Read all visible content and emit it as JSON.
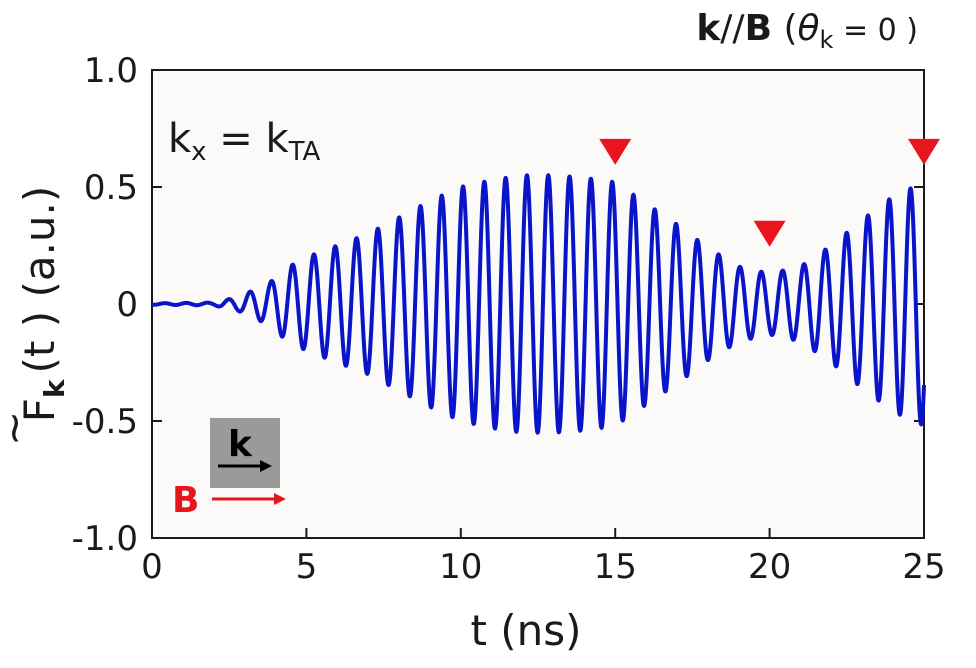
{
  "chart_data": {
    "type": "line",
    "title": {
      "bold_k": "k",
      "sep": "//",
      "bold_B": "B",
      "open": " (",
      "theta": "θ",
      "theta_sub": "k",
      "eq": " = 0 )"
    },
    "xlabel": "t (ns)",
    "ylabel": {
      "main": "F",
      "tilde": "~",
      "sub": "k",
      "rest": "(t ) (a.u.)"
    },
    "xlim": [
      0,
      25
    ],
    "ylim": [
      -1.0,
      1.0
    ],
    "x_ticks": [
      "0",
      "5",
      "10",
      "15",
      "20",
      "25"
    ],
    "x_tick_values": [
      0,
      5,
      10,
      15,
      20,
      25
    ],
    "y_ticks": [
      "1.0",
      "0.5",
      "0",
      "-0.5",
      "-1.0"
    ],
    "y_tick_values": [
      1.0,
      0.5,
      0,
      -0.5,
      -1.0
    ],
    "annotation": {
      "kx": "k",
      "kx_sub": "x",
      "eq": " = k",
      "kta_sub": "TA"
    },
    "markers": [
      {
        "x": 15.0,
        "y": 0.65
      },
      {
        "x": 20.0,
        "y": 0.3
      },
      {
        "x": 25.0,
        "y": 0.65
      }
    ],
    "inset": {
      "k_label": "k",
      "B_label": "B"
    },
    "series": [
      {
        "color": "#0a14c8",
        "oscillation_period_ns": 0.69,
        "envelope": {
          "t": [
            0,
            2.0,
            2.8,
            3.3,
            3.8,
            4.3,
            5.0,
            6.0,
            7.0,
            8.0,
            9.0,
            10.0,
            11.0,
            12.0,
            13.0,
            14.0,
            15.0,
            16.0,
            17.0,
            18.0,
            19.0,
            20.0,
            21.0,
            22.0,
            23.0,
            24.0,
            25.0
          ],
          "amplitude": [
            0.003,
            0.006,
            0.03,
            0.06,
            0.09,
            0.15,
            0.2,
            0.25,
            0.3,
            0.37,
            0.44,
            0.5,
            0.53,
            0.55,
            0.55,
            0.54,
            0.52,
            0.43,
            0.34,
            0.24,
            0.16,
            0.13,
            0.16,
            0.25,
            0.36,
            0.46,
            0.52
          ]
        }
      }
    ],
    "colors": {
      "plot_bg": "#fcfaf9",
      "line": "#0a14c8",
      "marker": "#e8141e",
      "inset_bg": "#9a9a9a",
      "B_color": "#e8141e"
    }
  }
}
